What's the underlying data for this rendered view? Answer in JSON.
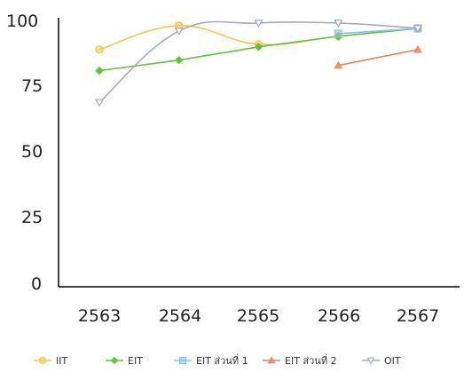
{
  "chart_data": {
    "type": "line",
    "categories": [
      "2563",
      "2564",
      "2565",
      "2566",
      "2567"
    ],
    "y_ticks": [
      "100",
      "75",
      "50",
      "25",
      "0"
    ],
    "ylim": [
      0,
      100
    ],
    "grid": false,
    "legend_position": "bottom",
    "series": [
      {
        "name": "IIT",
        "values": [
          89,
          98,
          91,
          94,
          97
        ],
        "color": "#f5c64a",
        "marker": "circle",
        "smooth": true
      },
      {
        "name": "EIT",
        "values": [
          81,
          85,
          90,
          94,
          97
        ],
        "color": "#62c23a",
        "marker": "diamond",
        "smooth": false
      },
      {
        "name": "EIT ส่วนที่ 1",
        "values": [
          null,
          null,
          null,
          95,
          97
        ],
        "color": "#86c3ee",
        "marker": "square",
        "smooth": false
      },
      {
        "name": "EIT ส่วนที่ 2",
        "values": [
          null,
          null,
          null,
          83,
          89
        ],
        "color": "#e8845a",
        "marker": "triangle-up",
        "smooth": false
      },
      {
        "name": "OIT",
        "values": [
          69,
          96,
          99,
          99,
          97
        ],
        "color": "#a3a6c8",
        "marker": "triangle-down",
        "smooth": true
      }
    ]
  }
}
